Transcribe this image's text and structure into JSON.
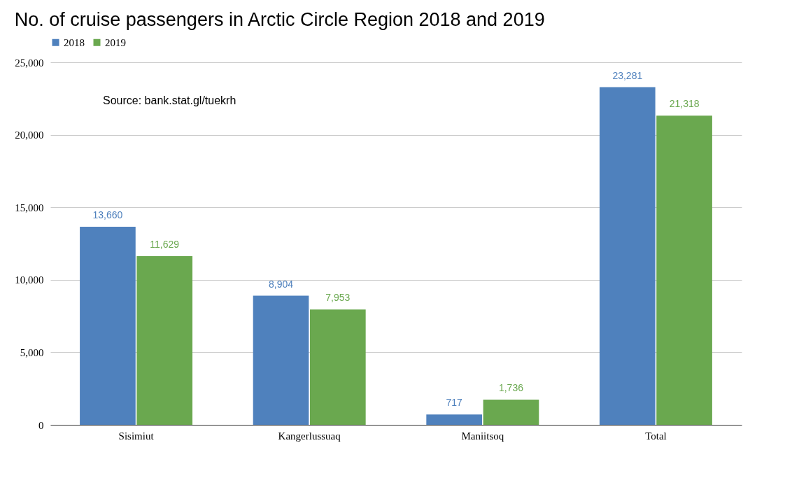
{
  "chart_data": {
    "type": "bar",
    "title": "No. of cruise passengers in Arctic Circle Region 2018 and 2019",
    "categories": [
      "Sisimiut",
      "Kangerlussuaq",
      "Maniitsoq",
      "Total"
    ],
    "series": [
      {
        "name": "2018",
        "color": "#4f81bd",
        "values": [
          13660,
          8904,
          717,
          23281
        ],
        "value_labels": [
          "13,660",
          "8,904",
          "717",
          "23,281"
        ]
      },
      {
        "name": "2019",
        "color": "#6aa84f",
        "values": [
          11629,
          7953,
          1736,
          21318
        ],
        "value_labels": [
          "11,629",
          "7,953",
          "1,736",
          "21,318"
        ]
      }
    ],
    "ylim": [
      0,
      25000
    ],
    "yticks": [
      0,
      {
        "value": 5000,
        "label": "5,000"
      },
      {
        "value": 10000,
        "label": "10,000"
      },
      {
        "value": 15000,
        "label": "15,000"
      },
      {
        "value": 20000,
        "label": "20,000"
      },
      {
        "value": 25000,
        "label": "25,000"
      }
    ],
    "grid": "y",
    "legend": "top",
    "annotations": [
      "Source: bank.stat.gl/tuekrh"
    ]
  }
}
